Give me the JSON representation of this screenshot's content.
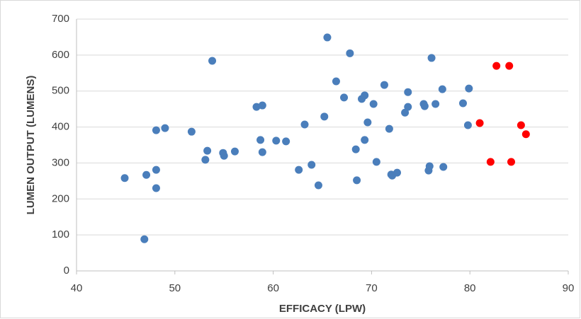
{
  "chart_data": {
    "type": "scatter",
    "xlabel": "EFFICACY (LPW)",
    "ylabel": "LUMEN OUTPUT (LUMENS)",
    "xlim": [
      40,
      90
    ],
    "xticks": [
      40,
      50,
      60,
      70,
      80,
      90
    ],
    "ylim": [
      0,
      700
    ],
    "yticks": [
      0,
      100,
      200,
      300,
      400,
      500,
      600,
      700
    ],
    "grid": true,
    "series": [
      {
        "color": "#4a7ebb",
        "x": [
          44.9,
          47.1,
          46.9,
          48.1,
          48.1,
          48.1,
          49.0,
          51.7,
          53.3,
          53.1,
          53.8,
          54.9,
          55.0,
          56.1,
          58.3,
          58.9,
          58.7,
          58.9,
          60.3,
          61.3,
          62.6,
          63.2,
          63.9,
          64.6,
          65.2,
          65.5,
          66.4,
          67.2,
          67.8,
          68.4,
          68.5,
          69.0,
          69.3,
          69.3,
          69.6,
          70.2,
          70.5,
          71.3,
          71.8,
          72.0,
          72.1,
          72.6,
          73.4,
          73.7,
          73.7,
          75.3,
          75.4,
          75.8,
          75.9,
          76.1,
          76.5,
          77.2,
          77.3,
          79.3,
          79.8,
          79.9
        ],
        "y": [
          258,
          267,
          88,
          391,
          281,
          230,
          397,
          387,
          334,
          309,
          584,
          328,
          320,
          332,
          456,
          460,
          364,
          330,
          362,
          360,
          281,
          407,
          295,
          238,
          429,
          649,
          527,
          482,
          605,
          338,
          252,
          478,
          488,
          364,
          413,
          464,
          303,
          517,
          395,
          268,
          265,
          273,
          440,
          456,
          497,
          464,
          458,
          279,
          291,
          592,
          464,
          505,
          289,
          466,
          405,
          507
        ]
      },
      {
        "color": "#ff0000",
        "x": [
          81.0,
          82.1,
          82.7,
          84.0,
          84.2,
          85.2,
          85.7
        ],
        "y": [
          411,
          303,
          570,
          570,
          303,
          405,
          380
        ]
      }
    ]
  }
}
